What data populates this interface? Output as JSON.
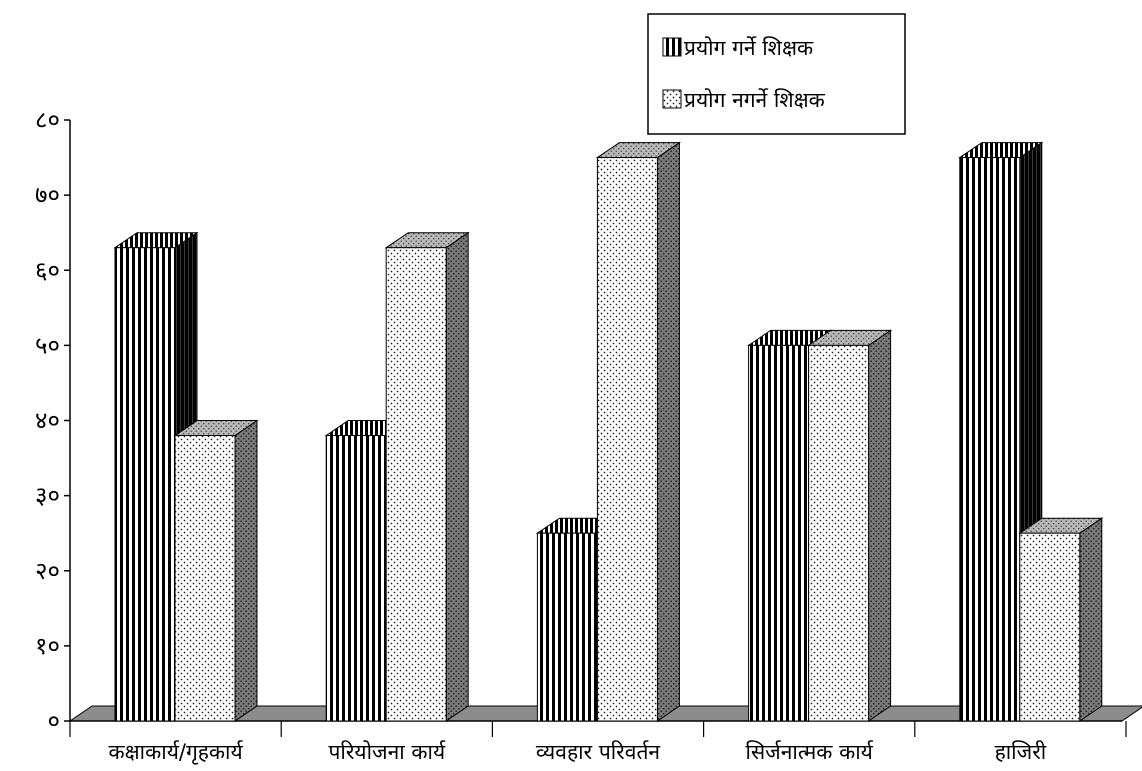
{
  "chart_data": {
    "type": "bar",
    "title": "",
    "xlabel": "",
    "ylabel": "",
    "ylim": [
      0,
      80
    ],
    "y_ticks": [
      0,
      10,
      20,
      30,
      40,
      50,
      60,
      70,
      80
    ],
    "y_tick_labels": [
      "०",
      "१०",
      "२०",
      "३०",
      "४०",
      "५०",
      "६०",
      "७०",
      "८०"
    ],
    "categories": [
      "कक्षाकार्य/गृहकार्य",
      "परियोजना कार्य",
      "व्यवहार परिवर्तन",
      "सिर्जनात्मक कार्य",
      "हाजिरी"
    ],
    "series": [
      {
        "name": "प्रयोग गर्ने शिक्षक",
        "values": [
          63,
          38,
          25,
          50,
          75
        ]
      },
      {
        "name": "प्रयोग नगर्ने शिक्षक",
        "values": [
          38,
          63,
          75,
          50,
          25
        ]
      }
    ],
    "legend_position": "top-right",
    "style": "3d-column",
    "grid": false,
    "colors": {
      "floor": "#8c8c8c",
      "bar_front": "#ffffff",
      "stroke": "#000000",
      "series2_side": "#7a7a7a",
      "series2_top": "#b8b8b8"
    }
  }
}
